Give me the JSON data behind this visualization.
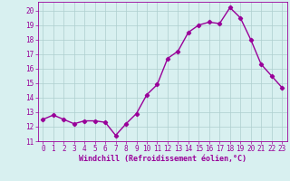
{
  "x": [
    0,
    1,
    2,
    3,
    4,
    5,
    6,
    7,
    8,
    9,
    10,
    11,
    12,
    13,
    14,
    15,
    16,
    17,
    18,
    19,
    20,
    21,
    22,
    23
  ],
  "y": [
    12.5,
    12.8,
    12.5,
    12.2,
    12.4,
    12.4,
    12.3,
    11.4,
    12.2,
    12.9,
    14.2,
    14.9,
    16.7,
    17.2,
    18.5,
    19.0,
    19.2,
    19.1,
    20.2,
    19.5,
    18.0,
    16.3,
    15.5,
    14.7
  ],
  "line_color": "#990099",
  "marker": "D",
  "marker_size": 2.2,
  "bg_color": "#d8f0f0",
  "grid_color": "#aecece",
  "xlabel": "Windchill (Refroidissement éolien,°C)",
  "xlim": [
    -0.5,
    23.5
  ],
  "ylim": [
    11,
    20.6
  ],
  "yticks": [
    11,
    12,
    13,
    14,
    15,
    16,
    17,
    18,
    19,
    20
  ],
  "xticks": [
    0,
    1,
    2,
    3,
    4,
    5,
    6,
    7,
    8,
    9,
    10,
    11,
    12,
    13,
    14,
    15,
    16,
    17,
    18,
    19,
    20,
    21,
    22,
    23
  ],
  "tick_label_fontsize": 5.5,
  "xlabel_fontsize": 6.0,
  "line_width": 1.0
}
